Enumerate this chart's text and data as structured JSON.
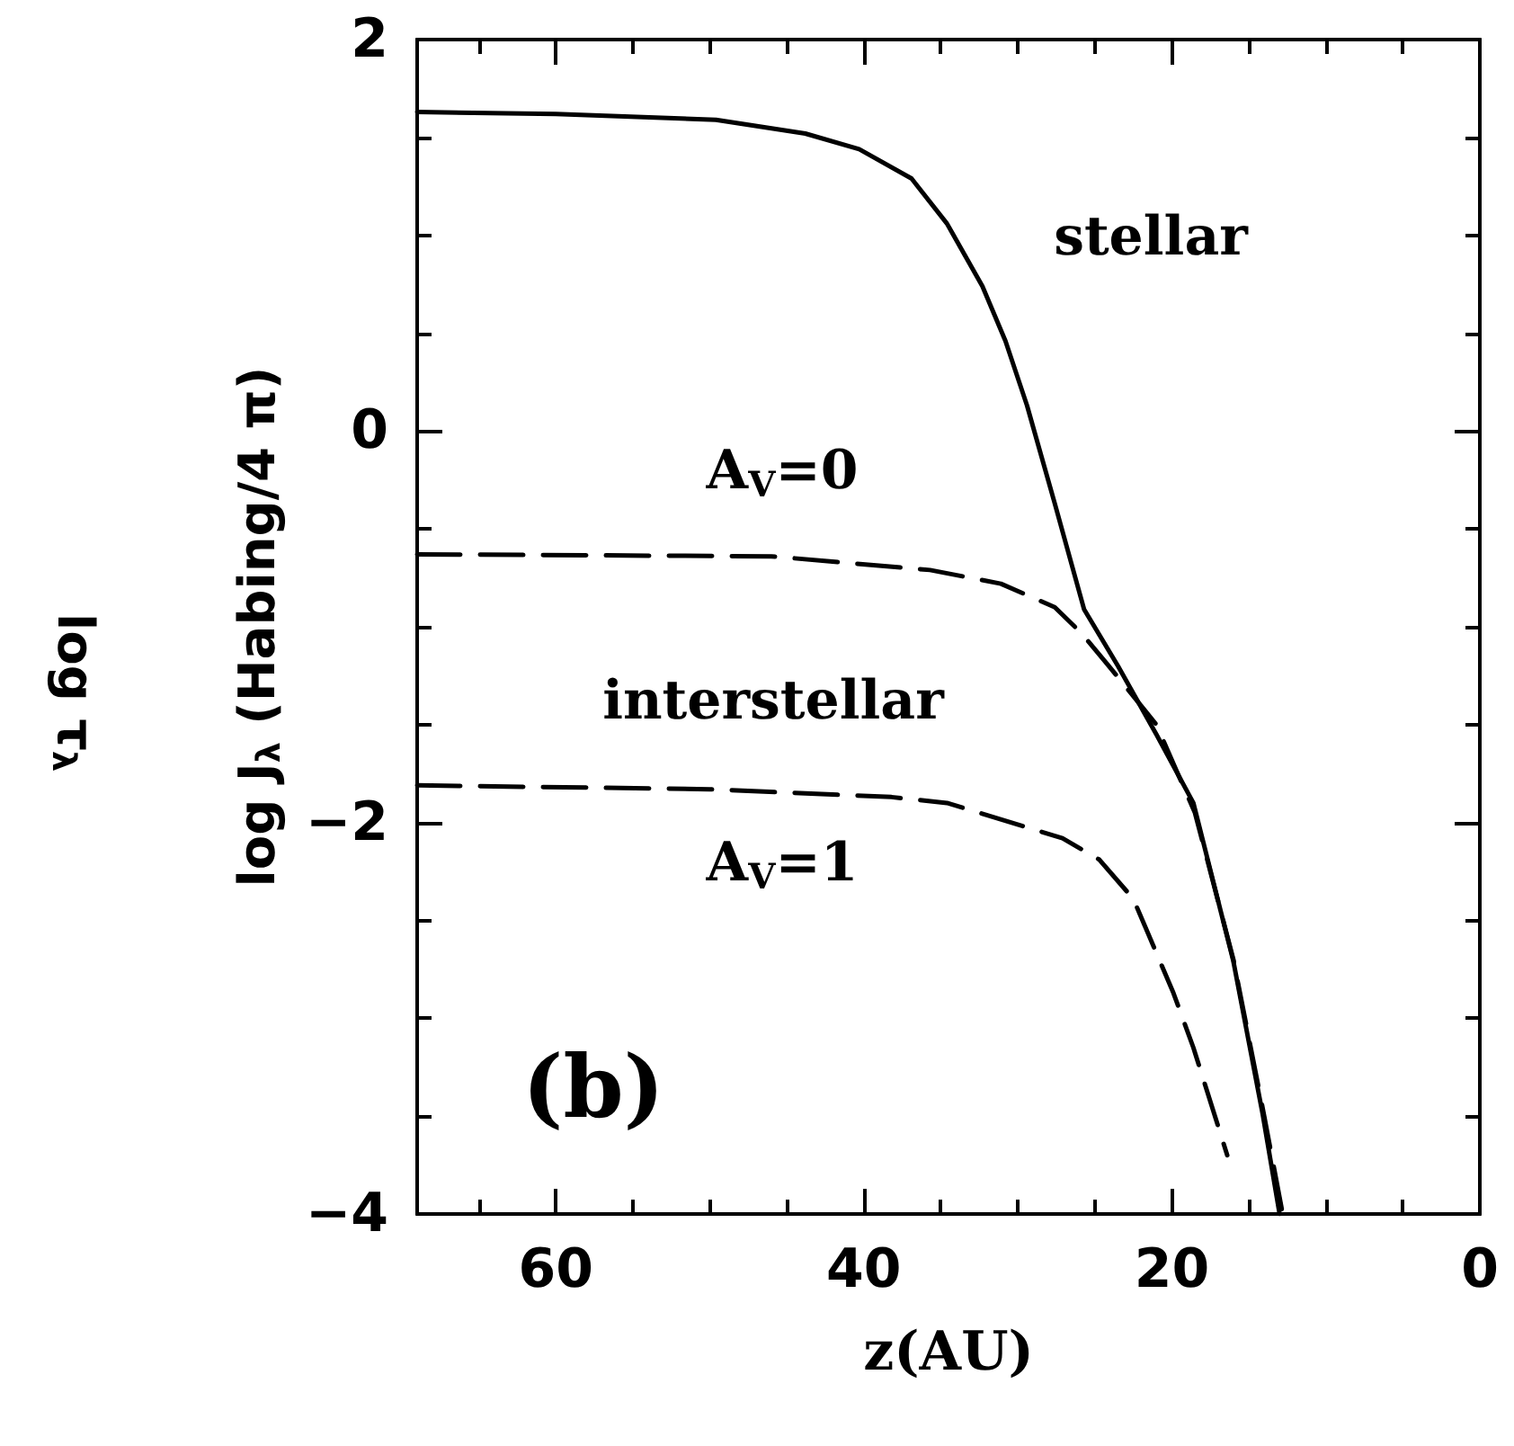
{
  "chart_data": {
    "type": "line",
    "xlabel": "z(AU)",
    "ylabel": "log J$_{λ}$ (Habing/4 π)",
    "xlim": [
      69,
      0
    ],
    "ylim": [
      -4,
      2
    ],
    "xticks": [
      {
        "value": 65,
        "label": null
      },
      60,
      {
        "value": 55,
        "label": null
      },
      {
        "value": 50,
        "label": null
      },
      {
        "value": 45,
        "label": null
      },
      40,
      {
        "value": 35,
        "label": null
      },
      {
        "value": 30,
        "label": null
      },
      {
        "value": 25,
        "label": null
      },
      20,
      {
        "value": 15,
        "label": null
      },
      {
        "value": 10,
        "label": null
      },
      {
        "value": 5,
        "label": null
      },
      0
    ],
    "yticks": [
      -4,
      {
        "value": -3.5,
        "label": null
      },
      {
        "value": -3,
        "label": null
      },
      {
        "value": -2.5,
        "label": null
      },
      -2,
      {
        "value": -1.5,
        "label": null
      },
      {
        "value": -1,
        "label": null
      },
      {
        "value": -0.5,
        "label": null
      },
      0,
      {
        "value": 0.5,
        "label": null
      },
      {
        "value": 1,
        "label": null
      },
      {
        "value": 1.5,
        "label": null
      },
      2
    ],
    "grid": false,
    "marker": "none",
    "series": [
      {
        "color": "#000000",
        "line_style": "solid",
        "x": [
          69,
          60,
          49.6,
          43.8,
          40.3,
          36.9,
          34.6,
          32.3,
          30.8,
          29.4,
          27.6,
          25.7,
          23.5,
          21,
          18.6,
          16,
          14.1,
          13
        ],
        "values": [
          1.63,
          1.62,
          1.59,
          1.52,
          1.44,
          1.29,
          1.06,
          0.74,
          0.46,
          0.13,
          -0.37,
          -0.91,
          -1.2,
          -1.55,
          -1.9,
          -2.71,
          -3.49,
          -4
        ]
      },
      {
        "color": "#000000",
        "line_style": "dashed",
        "x": [
          69,
          46,
          35.7,
          31.1,
          27.6,
          25.9,
          24.2,
          21,
          18.5,
          16,
          14,
          12.8
        ],
        "values": [
          -0.63,
          -0.64,
          -0.71,
          -0.78,
          -0.9,
          -1.03,
          -1.19,
          -1.5,
          -1.95,
          -2.7,
          -3.5,
          -4
        ]
      },
      {
        "color": "#000000",
        "line_style": "dashed",
        "x": [
          69,
          50,
          38.2,
          34.6,
          27.1,
          24.7,
          22.5,
          19.9,
          18.6,
          16.4
        ],
        "values": [
          -1.81,
          -1.83,
          -1.87,
          -1.9,
          -2.08,
          -2.19,
          -2.39,
          -2.87,
          -3.15,
          -3.7
        ]
      }
    ],
    "annotations": [
      "stellar",
      "A$_{V}$=0",
      "interstellar",
      "A$_{V}$=1",
      "(b)",
      "log τ$_{λ}$"
    ]
  }
}
